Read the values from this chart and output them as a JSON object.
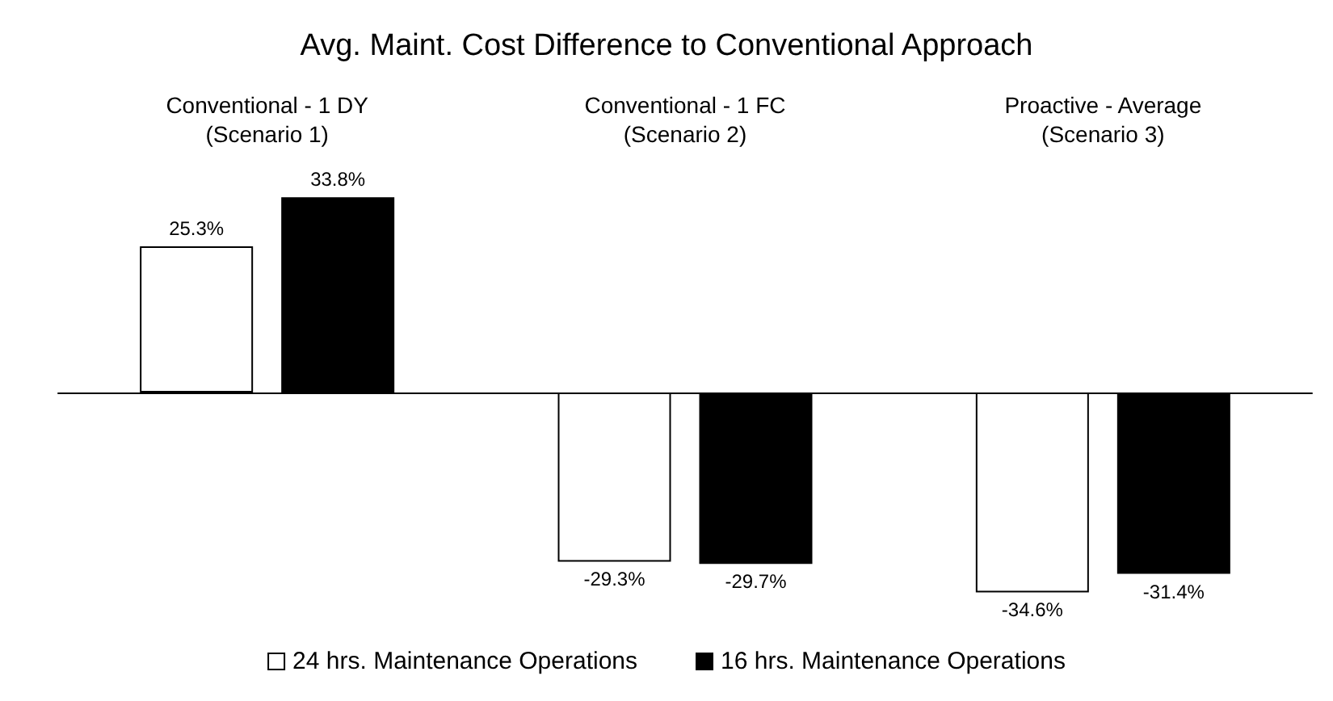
{
  "chart_data": {
    "type": "bar",
    "title": "Avg. Maint. Cost Difference to Conventional Approach",
    "categories": [
      "Conventional - 1 DY\n(Scenario 1)",
      "Conventional - 1 FC\n(Scenario 2)",
      "Proactive - Average\n(Scenario 3)"
    ],
    "series": [
      {
        "name": "24 hrs. Maintenance Operations",
        "color": "#ffffff",
        "values": [
          25.3,
          -29.3,
          -34.6
        ],
        "value_labels": [
          "25.3%",
          "-29.3%",
          "-34.6%"
        ]
      },
      {
        "name": "16 hrs. Maintenance Operations",
        "color": "#000000",
        "values": [
          33.8,
          -29.7,
          -31.4
        ],
        "value_labels": [
          "33.8%",
          "-29.7%",
          "-31.4%"
        ]
      }
    ],
    "legend": "bottom"
  }
}
